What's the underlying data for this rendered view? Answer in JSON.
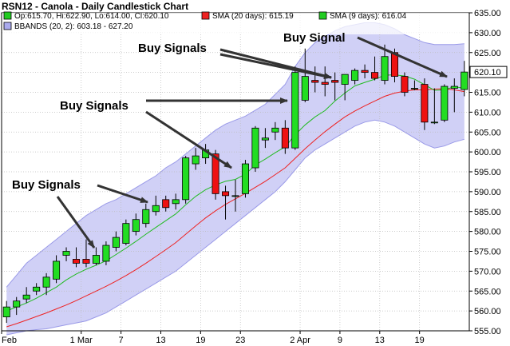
{
  "chart_data": {
    "type": "candlestick",
    "title": "RSN12 - Canola - Daily Candlestick Chart",
    "legend": [
      {
        "swatch": "#22cc22",
        "text": "Op:615.70, Hi:622.90, Lo:614.00, Cl:620.10"
      },
      {
        "swatch": "#ee2222",
        "text": "SMA (20 days): 615.19"
      },
      {
        "swatch": "#22cc22",
        "text": "SMA (9 days): 616.04"
      },
      {
        "swatch": "#aaaaee",
        "text": "BBANDS (20, 2): 603.18 - 627.20"
      }
    ],
    "legend_placement": "top-left",
    "ylim": [
      555,
      635
    ],
    "yticks": [
      555,
      560,
      565,
      570,
      575,
      580,
      585,
      590,
      595,
      600,
      605,
      610,
      615,
      620,
      625,
      630,
      635
    ],
    "ytick_labels": [
      "555.00",
      "560.00",
      "565.00",
      "570.00",
      "575.00",
      "580.00",
      "585.00",
      "590.00",
      "595.00",
      "600.00",
      "605.00",
      "610.00",
      "615.00",
      "620.00",
      "625.00",
      "630.00",
      "635.00"
    ],
    "xticks": [
      {
        "label": "Feb",
        "index": 0
      },
      {
        "label": "1 Mar",
        "index": 8
      },
      {
        "label": "7",
        "index": 12
      },
      {
        "label": "13",
        "index": 16
      },
      {
        "label": "19",
        "index": 20
      },
      {
        "label": "23",
        "index": 24
      },
      {
        "label": "2 Apr",
        "index": 30
      },
      {
        "label": "9",
        "index": 34
      },
      {
        "label": "13",
        "index": 38
      },
      {
        "label": "19",
        "index": 42
      }
    ],
    "last_price_label": "620.10",
    "candles": [
      {
        "o": 558.5,
        "h": 562.5,
        "l": 557.0,
        "c": 561.0
      },
      {
        "o": 561.0,
        "h": 563.5,
        "l": 559.0,
        "c": 562.5
      },
      {
        "o": 563.0,
        "h": 566.0,
        "l": 562.0,
        "c": 564.0
      },
      {
        "o": 565.0,
        "h": 567.0,
        "l": 564.0,
        "c": 566.0
      },
      {
        "o": 566.0,
        "h": 569.5,
        "l": 564.0,
        "c": 568.5
      },
      {
        "o": 568.0,
        "h": 574.0,
        "l": 567.0,
        "c": 572.5
      },
      {
        "o": 574.0,
        "h": 576.0,
        "l": 572.5,
        "c": 575.0
      },
      {
        "o": 573.0,
        "h": 576.0,
        "l": 571.0,
        "c": 572.0
      },
      {
        "o": 573.0,
        "h": 578.0,
        "l": 571.0,
        "c": 572.0
      },
      {
        "o": 572.0,
        "h": 576.0,
        "l": 571.5,
        "c": 574.0
      },
      {
        "o": 572.5,
        "h": 577.5,
        "l": 571.5,
        "c": 576.5
      },
      {
        "o": 576.0,
        "h": 580.0,
        "l": 575.0,
        "c": 578.5
      },
      {
        "o": 577.0,
        "h": 583.0,
        "l": 576.5,
        "c": 582.0
      },
      {
        "o": 580.0,
        "h": 584.5,
        "l": 579.0,
        "c": 583.0
      },
      {
        "o": 582.0,
        "h": 587.0,
        "l": 581.0,
        "c": 585.5
      },
      {
        "o": 585.0,
        "h": 589.0,
        "l": 584.0,
        "c": 586.5
      },
      {
        "o": 588.0,
        "h": 589.0,
        "l": 585.0,
        "c": 586.0
      },
      {
        "o": 587.0,
        "h": 589.5,
        "l": 585.5,
        "c": 588.0
      },
      {
        "o": 588.0,
        "h": 599.0,
        "l": 587.0,
        "c": 598.5
      },
      {
        "o": 597.0,
        "h": 601.0,
        "l": 595.5,
        "c": 599.0
      },
      {
        "o": 598.5,
        "h": 602.0,
        "l": 597.0,
        "c": 600.5
      },
      {
        "o": 599.5,
        "h": 600.5,
        "l": 588.0,
        "c": 589.5
      },
      {
        "o": 590.0,
        "h": 591.5,
        "l": 583.0,
        "c": 589.0
      },
      {
        "o": 589.0,
        "h": 593.0,
        "l": 585.0,
        "c": 589.0
      },
      {
        "o": 589.5,
        "h": 598.0,
        "l": 588.5,
        "c": 597.0
      },
      {
        "o": 596.0,
        "h": 606.5,
        "l": 595.0,
        "c": 606.0
      },
      {
        "o": 603.0,
        "h": 606.0,
        "l": 601.0,
        "c": 603.5
      },
      {
        "o": 605.0,
        "h": 607.5,
        "l": 603.0,
        "c": 606.0
      },
      {
        "o": 606.0,
        "h": 608.0,
        "l": 599.5,
        "c": 601.0
      },
      {
        "o": 601.0,
        "h": 621.5,
        "l": 600.5,
        "c": 620.0
      },
      {
        "o": 613.0,
        "h": 626.0,
        "l": 612.5,
        "c": 619.0
      },
      {
        "o": 618.0,
        "h": 621.5,
        "l": 615.0,
        "c": 617.5
      },
      {
        "o": 617.5,
        "h": 621.5,
        "l": 614.0,
        "c": 617.0
      },
      {
        "o": 618.0,
        "h": 620.0,
        "l": 613.0,
        "c": 617.5
      },
      {
        "o": 617.0,
        "h": 619.0,
        "l": 613.0,
        "c": 619.5
      },
      {
        "o": 618.0,
        "h": 621.0,
        "l": 617.0,
        "c": 620.5
      },
      {
        "o": 620.5,
        "h": 622.0,
        "l": 618.5,
        "c": 620.0
      },
      {
        "o": 620.0,
        "h": 624.0,
        "l": 618.0,
        "c": 618.5
      },
      {
        "o": 618.0,
        "h": 627.0,
        "l": 617.0,
        "c": 624.0
      },
      {
        "o": 625.0,
        "h": 626.0,
        "l": 617.5,
        "c": 619.0
      },
      {
        "o": 619.0,
        "h": 620.0,
        "l": 614.0,
        "c": 615.0
      },
      {
        "o": 616.0,
        "h": 618.0,
        "l": 615.5,
        "c": 616.0
      },
      {
        "o": 617.0,
        "h": 618.5,
        "l": 605.5,
        "c": 607.5
      },
      {
        "o": 607.5,
        "h": 616.0,
        "l": 607.0,
        "c": 607.5
      },
      {
        "o": 608.0,
        "h": 617.0,
        "l": 607.5,
        "c": 616.5
      },
      {
        "o": 616.0,
        "h": 618.5,
        "l": 610.0,
        "c": 616.5
      },
      {
        "o": 615.7,
        "h": 622.9,
        "l": 614.0,
        "c": 620.1
      }
    ],
    "sma9": [
      560.0,
      561.0,
      562.0,
      563.2,
      564.6,
      566.0,
      567.8,
      569.3,
      570.5,
      571.5,
      572.6,
      574.2,
      575.8,
      577.5,
      579.3,
      581.0,
      582.7,
      584.4,
      586.7,
      588.8,
      590.5,
      591.7,
      592.6,
      593.1,
      594.4,
      596.7,
      598.2,
      599.8,
      601.3,
      604.3,
      606.8,
      608.8,
      610.4,
      612.8,
      614.8,
      616.6,
      617.5,
      618.3,
      619.3,
      619.4,
      619.1,
      618.3,
      616.9,
      615.5,
      615.6,
      616.4,
      616.0
    ],
    "sma20": [
      556.0,
      556.8,
      557.7,
      558.6,
      559.5,
      560.5,
      561.5,
      562.6,
      563.8,
      565.0,
      566.2,
      567.5,
      568.9,
      570.4,
      572.0,
      573.7,
      575.4,
      577.2,
      579.3,
      581.4,
      583.4,
      585.2,
      586.8,
      588.2,
      589.6,
      591.1,
      592.6,
      594.3,
      596.0,
      598.4,
      600.8,
      603.0,
      605.1,
      607.0,
      608.8,
      610.3,
      611.6,
      612.8,
      614.0,
      614.8,
      615.3,
      615.6,
      615.6,
      615.8,
      615.9,
      615.6,
      615.19
    ],
    "bband_upper": [
      566.0,
      569.0,
      572.0,
      574.0,
      576.0,
      578.0,
      580.0,
      582.0,
      584.0,
      585.5,
      587.0,
      588.0,
      589.5,
      591.0,
      592.5,
      594.0,
      596.0,
      597.5,
      599.5,
      601.5,
      603.5,
      605.5,
      607.0,
      608.0,
      609.0,
      610.5,
      612.0,
      614.5,
      617.0,
      621.5,
      625.0,
      627.5,
      629.0,
      630.5,
      631.5,
      632.0,
      632.5,
      632.5,
      632.0,
      631.0,
      629.5,
      628.5,
      627.5,
      627.0,
      627.0,
      627.0,
      627.2
    ],
    "bband_lower": [
      554.0,
      554.5,
      555.0,
      555.3,
      555.5,
      556.0,
      556.5,
      557.0,
      557.5,
      558.5,
      559.5,
      561.0,
      562.5,
      564.0,
      565.5,
      567.0,
      568.5,
      570.0,
      572.0,
      574.0,
      576.0,
      578.0,
      580.0,
      582.0,
      584.0,
      586.0,
      588.0,
      590.0,
      592.5,
      595.5,
      598.5,
      600.5,
      602.0,
      603.5,
      605.0,
      606.5,
      607.5,
      608.0,
      607.5,
      606.5,
      605.0,
      603.5,
      602.0,
      601.0,
      601.5,
      602.5,
      603.18
    ],
    "annotations": [
      {
        "text": "Buy Signal",
        "label_x": 355,
        "label_y": 52,
        "arrows": [
          {
            "from": [
              448,
              47
            ],
            "to": [
              560,
              96
            ]
          }
        ]
      },
      {
        "text": "Buy Signals",
        "label_x": 173,
        "label_y": 65,
        "arrows": [
          {
            "from": [
              276,
              62
            ],
            "to": [
              415,
              97
            ]
          },
          {
            "from": [
              276,
              68
            ],
            "to": [
              415,
              97
            ]
          }
        ]
      },
      {
        "text": "Buy Signals",
        "label_x": 75,
        "label_y": 137,
        "arrows": [
          {
            "from": [
              183,
              126
            ],
            "to": [
              360,
              126
            ]
          },
          {
            "from": [
              183,
              140
            ],
            "to": [
              290,
              210
            ]
          }
        ]
      },
      {
        "text": "Buy Signals",
        "label_x": 15,
        "label_y": 236,
        "arrows": [
          {
            "from": [
              122,
              232
            ],
            "to": [
              185,
              253
            ]
          },
          {
            "from": [
              72,
              246
            ],
            "to": [
              118,
              310
            ]
          }
        ]
      }
    ]
  }
}
